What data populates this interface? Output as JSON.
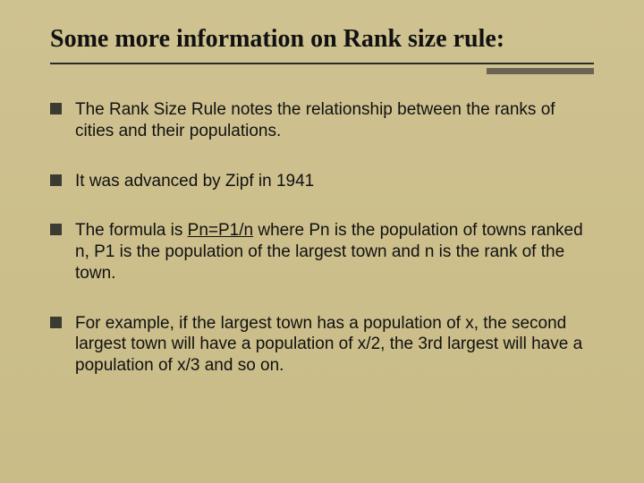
{
  "slide": {
    "title": "Some more information on Rank size rule:",
    "bullets": [
      {
        "text": "The Rank Size Rule notes the relationship between the ranks of cities and their populations."
      },
      {
        "text": "It was advanced by Zipf in 1941"
      },
      {
        "prefix": "The formula is ",
        "underline": "Pn=P1/n",
        "suffix": " where Pn is the population of towns ranked n, P1 is the population of the largest town and n is the rank of the town."
      },
      {
        "text": "For example, if the largest town has a population of x, the second largest town will have a population of x/2, the 3rd largest will have a population of x/3 and so on."
      }
    ],
    "styling": {
      "background_color": "#cdc08f",
      "title_font": "Times New Roman",
      "title_fontsize": 28,
      "title_color": "#111111",
      "body_font": "Arial",
      "body_fontsize": 19,
      "body_color": "#111111",
      "bullet_marker_color": "#3b3a33",
      "bullet_marker_size": 13,
      "divider_color": "#2b2b2b",
      "accent_color": "#6d6353",
      "accent_width": 120,
      "accent_height": 7,
      "slide_width": 720,
      "slide_height": 540
    }
  }
}
